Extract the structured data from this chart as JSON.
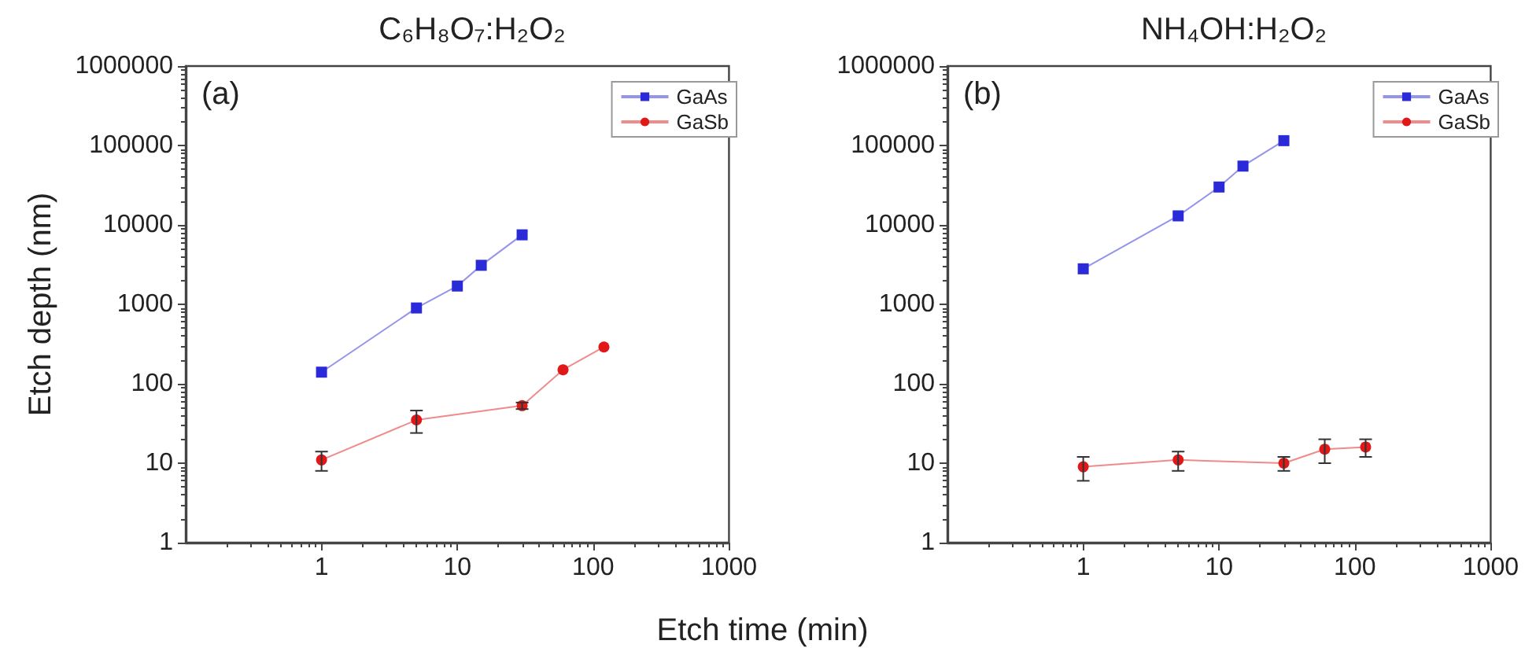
{
  "chart_data": [
    {
      "type": "line",
      "title": "C₆H₈O₇:H₂O₂",
      "xlabel": "Etch time (min)",
      "ylabel": "Etch depth (nm)",
      "annotations": [
        "(a)"
      ],
      "log": "xy",
      "xlim": [
        0.1,
        1000
      ],
      "xticks": [
        1,
        10,
        100,
        1000
      ],
      "ylim": [
        1,
        1000000
      ],
      "yticks": [
        1,
        10,
        100,
        1000,
        10000,
        100000,
        1000000
      ],
      "grid": false,
      "legend": "top right",
      "line_style": "solid",
      "series": [
        {
          "name": "GaAs",
          "color": "#2a2ad8",
          "marker": "square",
          "x": [
            1,
            5,
            10,
            15,
            30
          ],
          "values": [
            140,
            900,
            1700,
            3100,
            7500
          ]
        },
        {
          "name": "GaSb",
          "color": "#e01818",
          "marker": "circle",
          "x": [
            1,
            5,
            30,
            60,
            120
          ],
          "values": [
            11,
            35,
            53,
            150,
            290
          ],
          "errors": [
            [
              8,
              14
            ],
            [
              24,
              46
            ],
            [
              48,
              58
            ],
            null,
            null
          ]
        }
      ]
    },
    {
      "type": "line",
      "title": "NH₄OH:H₂O₂",
      "annotations": [
        "(b)"
      ],
      "log": "xy",
      "xlim": [
        0.1,
        1000
      ],
      "xticks": [
        1,
        10,
        100,
        1000
      ],
      "ylim": [
        1,
        1000000
      ],
      "yticks": [
        1,
        10,
        100,
        1000,
        10000,
        100000,
        1000000
      ],
      "grid": false,
      "legend": "top right",
      "line_style": "solid",
      "series": [
        {
          "name": "GaAs",
          "color": "#2a2ad8",
          "marker": "square",
          "x": [
            1,
            5,
            10,
            15,
            30
          ],
          "values": [
            2800,
            13000,
            30000,
            55000,
            115000
          ]
        },
        {
          "name": "GaSb",
          "color": "#e01818",
          "marker": "circle",
          "x": [
            1,
            5,
            30,
            60,
            120
          ],
          "values": [
            9,
            11,
            10,
            15,
            16
          ],
          "errors": [
            [
              6,
              12
            ],
            [
              8,
              14
            ],
            [
              8,
              12
            ],
            [
              10,
              20
            ],
            [
              12,
              20
            ]
          ]
        }
      ]
    }
  ]
}
